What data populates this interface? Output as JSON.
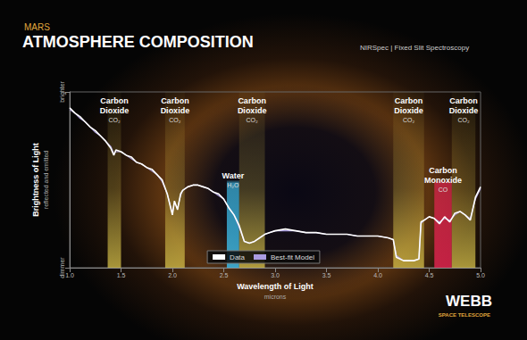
{
  "chart_data": {
    "type": "line",
    "supertitle": "MARS",
    "title": "ATMOSPHERE COMPOSITION",
    "subtitle": "NIRSpec | Fixed Slit Spectroscopy",
    "logo_title": "WEBB",
    "logo_subtitle": "SPACE TELESCOPE",
    "x_label": "Wavelength of Light",
    "x_sublabel": "microns",
    "y_label": "Brightness of Light",
    "y_sublabel": "reflected and emitted",
    "x": [
      1.0,
      1.05,
      1.1,
      1.15,
      1.2,
      1.25,
      1.3,
      1.35,
      1.4,
      1.43,
      1.45,
      1.5,
      1.55,
      1.6,
      1.65,
      1.7,
      1.75,
      1.8,
      1.85,
      1.9,
      1.95,
      2.0,
      2.02,
      2.05,
      2.08,
      2.1,
      2.15,
      2.2,
      2.25,
      2.3,
      2.35,
      2.4,
      2.45,
      2.5,
      2.55,
      2.6,
      2.65,
      2.7,
      2.75,
      2.8,
      2.85,
      2.9,
      2.95,
      3.0,
      3.1,
      3.2,
      3.3,
      3.4,
      3.5,
      3.6,
      3.7,
      3.8,
      3.9,
      4.0,
      4.1,
      4.15,
      4.18,
      4.25,
      4.35,
      4.4,
      4.42,
      4.45,
      4.5,
      4.55,
      4.6,
      4.65,
      4.7,
      4.75,
      4.8,
      4.85,
      4.9,
      4.95,
      5.0
    ],
    "series": [
      {
        "name": "Data",
        "color": "#ffffff",
        "values": [
          0.91,
          0.88,
          0.86,
          0.83,
          0.8,
          0.78,
          0.75,
          0.72,
          0.68,
          0.64,
          0.67,
          0.66,
          0.64,
          0.63,
          0.6,
          0.59,
          0.57,
          0.56,
          0.53,
          0.5,
          0.42,
          0.3,
          0.38,
          0.33,
          0.42,
          0.44,
          0.46,
          0.47,
          0.47,
          0.46,
          0.45,
          0.43,
          0.42,
          0.39,
          0.34,
          0.3,
          0.24,
          0.15,
          0.14,
          0.15,
          0.17,
          0.19,
          0.2,
          0.21,
          0.22,
          0.21,
          0.2,
          0.2,
          0.19,
          0.19,
          0.19,
          0.18,
          0.18,
          0.18,
          0.17,
          0.16,
          0.06,
          0.04,
          0.04,
          0.05,
          0.26,
          0.27,
          0.29,
          0.28,
          0.25,
          0.29,
          0.26,
          0.31,
          0.32,
          0.3,
          0.27,
          0.4,
          0.46
        ]
      },
      {
        "name": "Best-fit Model",
        "color": "#a99be0",
        "values": [
          0.9,
          0.88,
          0.85,
          0.83,
          0.8,
          0.77,
          0.75,
          0.72,
          0.69,
          0.65,
          0.66,
          0.66,
          0.64,
          0.62,
          0.6,
          0.59,
          0.57,
          0.55,
          0.53,
          0.49,
          0.42,
          0.31,
          0.37,
          0.34,
          0.41,
          0.44,
          0.46,
          0.47,
          0.47,
          0.46,
          0.45,
          0.43,
          0.41,
          0.39,
          0.34,
          0.3,
          0.23,
          0.15,
          0.14,
          0.15,
          0.17,
          0.19,
          0.2,
          0.21,
          0.21,
          0.21,
          0.2,
          0.2,
          0.19,
          0.19,
          0.19,
          0.18,
          0.18,
          0.18,
          0.17,
          0.16,
          0.07,
          0.04,
          0.04,
          0.05,
          0.25,
          0.27,
          0.29,
          0.28,
          0.26,
          0.28,
          0.27,
          0.3,
          0.32,
          0.3,
          0.28,
          0.39,
          0.45
        ]
      }
    ],
    "bands": [
      {
        "label": "Carbon Dioxide",
        "formula": "CO₂",
        "range": [
          1.37,
          1.5
        ],
        "color": "#d8c24a"
      },
      {
        "label": "Carbon Dioxide",
        "formula": "CO₂",
        "range": [
          1.93,
          2.12
        ],
        "color": "#d8c24a"
      },
      {
        "label": "Water",
        "formula": "H₂O",
        "range": [
          2.53,
          2.65
        ],
        "color": "#3cb8e4"
      },
      {
        "label": "Carbon Dioxide",
        "formula": "CO₂",
        "range": [
          2.65,
          2.9
        ],
        "color": "#d8c24a"
      },
      {
        "label": "Carbon Dioxide",
        "formula": "CO₂",
        "range": [
          4.15,
          4.45
        ],
        "color": "#d8c24a"
      },
      {
        "label": "Carbon Monoxide",
        "formula": "CO",
        "range": [
          4.55,
          4.72
        ],
        "color": "#e0244e"
      },
      {
        "label": "Carbon Dioxide",
        "formula": "CO₂",
        "range": [
          4.72,
          4.95
        ],
        "color": "#d8c24a"
      }
    ],
    "xlim": [
      1.0,
      5.0
    ],
    "xticks": [
      {
        "value": 1.0,
        "label": "1.0"
      },
      {
        "value": 1.5,
        "label": "1.5"
      },
      {
        "value": 2.0,
        "label": "2.0"
      },
      {
        "value": 2.5,
        "label": "2.5"
      },
      {
        "value": 3.0,
        "label": "3.0"
      },
      {
        "value": 3.5,
        "label": "3.5"
      },
      {
        "value": 4.0,
        "label": "4.0"
      },
      {
        "value": 4.5,
        "label": "4.5"
      },
      {
        "value": 5.0,
        "label": "5.0"
      }
    ],
    "ylim": [
      0,
      1
    ],
    "yticks": [
      {
        "value": 0,
        "label": "dimmer"
      },
      {
        "value": 1,
        "label": "brighter"
      }
    ],
    "grid": false,
    "legend": "lower center"
  }
}
